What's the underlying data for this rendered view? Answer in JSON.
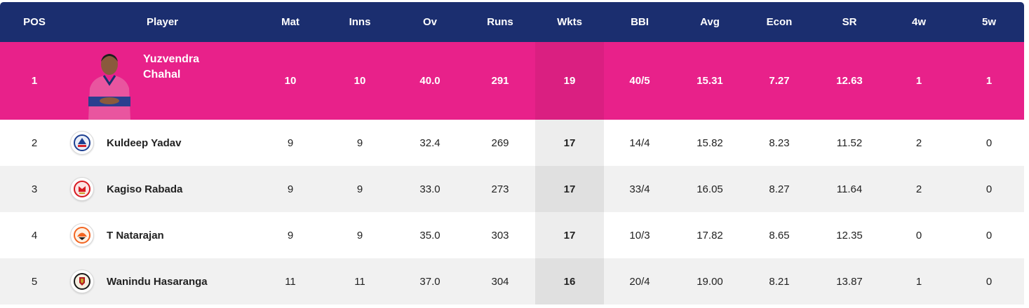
{
  "headers": {
    "pos": "POS",
    "player": "Player",
    "mat": "Mat",
    "inns": "Inns",
    "ov": "Ov",
    "runs": "Runs",
    "wkts": "Wkts",
    "bbi": "BBI",
    "avg": "Avg",
    "econ": "Econ",
    "sr": "SR",
    "fourw": "4w",
    "fivew": "5w"
  },
  "colors": {
    "header_bg": "#1b2e6f",
    "leader_bg": "#e8218a"
  },
  "rows": [
    {
      "pos": "1",
      "name_line1": "Yuzvendra",
      "name_line2": "Chahal",
      "team_icon": "rajasthan-royals-logo-icon",
      "mat": "10",
      "inns": "10",
      "ov": "40.0",
      "runs": "291",
      "wkts": "19",
      "bbi": "40/5",
      "avg": "15.31",
      "econ": "7.27",
      "sr": "12.63",
      "fourw": "1",
      "fivew": "1"
    },
    {
      "pos": "2",
      "name": "Kuldeep Yadav",
      "team_icon": "delhi-capitals-logo-icon",
      "mat": "9",
      "inns": "9",
      "ov": "32.4",
      "runs": "269",
      "wkts": "17",
      "bbi": "14/4",
      "avg": "15.82",
      "econ": "8.23",
      "sr": "11.52",
      "fourw": "2",
      "fivew": "0"
    },
    {
      "pos": "3",
      "name": "Kagiso Rabada",
      "team_icon": "punjab-kings-logo-icon",
      "mat": "9",
      "inns": "9",
      "ov": "33.0",
      "runs": "273",
      "wkts": "17",
      "bbi": "33/4",
      "avg": "16.05",
      "econ": "8.27",
      "sr": "11.64",
      "fourw": "2",
      "fivew": "0"
    },
    {
      "pos": "4",
      "name": "T Natarajan",
      "team_icon": "sunrisers-hyderabad-logo-icon",
      "mat": "9",
      "inns": "9",
      "ov": "35.0",
      "runs": "303",
      "wkts": "17",
      "bbi": "10/3",
      "avg": "17.82",
      "econ": "8.65",
      "sr": "12.35",
      "fourw": "0",
      "fivew": "0"
    },
    {
      "pos": "5",
      "name": "Wanindu Hasaranga",
      "team_icon": "royal-challengers-bangalore-logo-icon",
      "mat": "11",
      "inns": "11",
      "ov": "37.0",
      "runs": "304",
      "wkts": "16",
      "bbi": "20/4",
      "avg": "19.00",
      "econ": "8.21",
      "sr": "13.87",
      "fourw": "1",
      "fivew": "0"
    }
  ]
}
